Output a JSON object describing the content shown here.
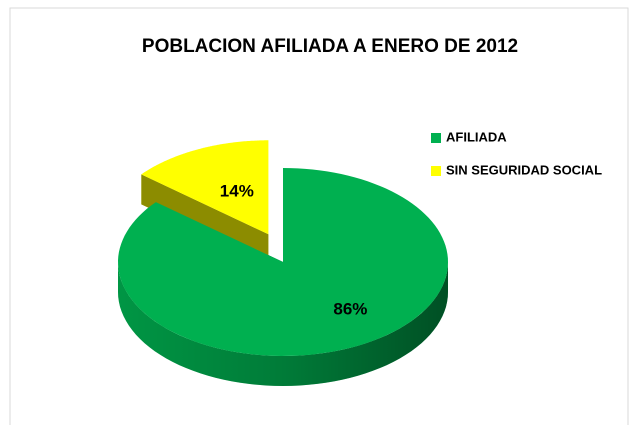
{
  "chart_data": {
    "type": "pie",
    "title": "POBLACION AFILIADA A ENERO DE 2012",
    "categories": [
      "AFILIADA",
      "SIN SEGURIDAD SOCIAL"
    ],
    "values": [
      86,
      14
    ],
    "value_labels": [
      "86%",
      "14%"
    ],
    "colors": [
      "#00b050",
      "#ffff00"
    ],
    "legend": "right",
    "three_d": true
  }
}
